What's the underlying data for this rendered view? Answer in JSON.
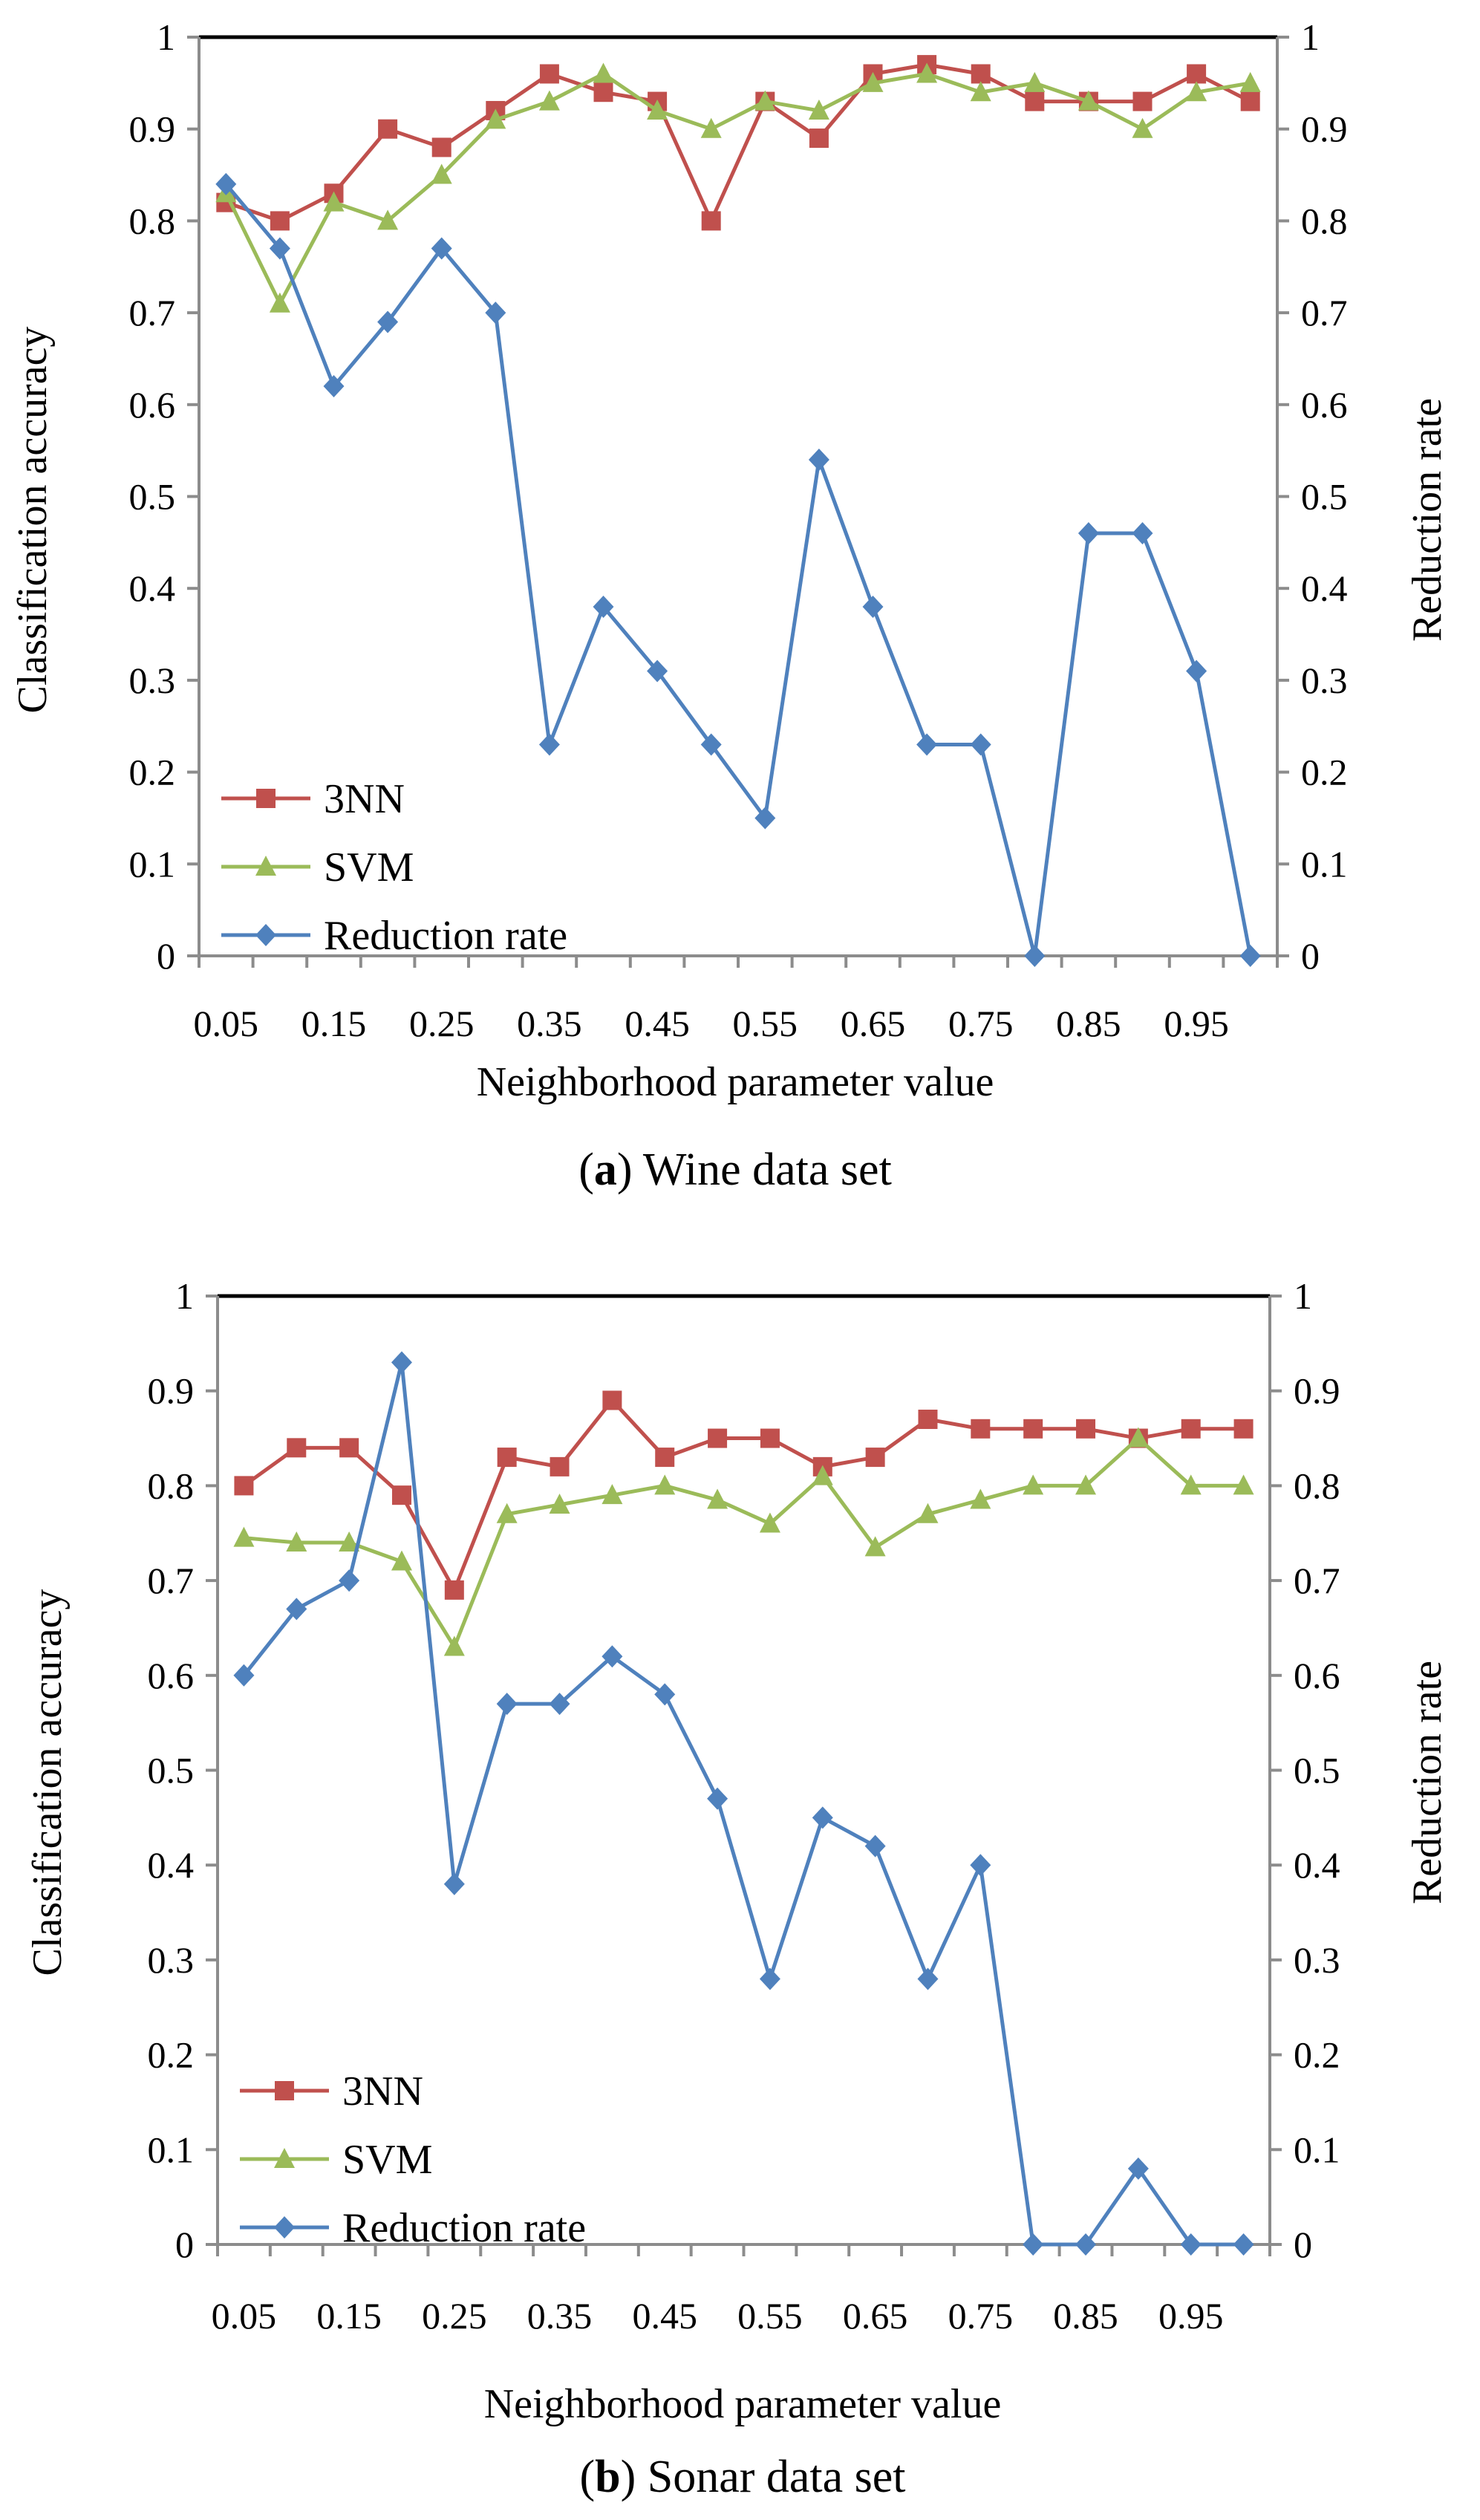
{
  "chart_data": [
    {
      "id": "a",
      "type": "line",
      "caption_label": "a",
      "caption_text": "Wine data set",
      "xlabel": "Neighborhood parameter value",
      "ylabel_left": "Classification accuracy",
      "ylabel_right": "Reduction rate",
      "ylim": [
        0,
        1
      ],
      "y_ticks": [
        "0",
        "0.1",
        "0.2",
        "0.3",
        "0.4",
        "0.5",
        "0.6",
        "0.7",
        "0.8",
        "0.9",
        "1"
      ],
      "x_tick_labels": [
        "0.05",
        "0.15",
        "0.25",
        "0.35",
        "0.45",
        "0.55",
        "0.65",
        "0.75",
        "0.85",
        "0.95"
      ],
      "x": [
        0.05,
        0.1,
        0.15,
        0.2,
        0.25,
        0.3,
        0.35,
        0.4,
        0.45,
        0.5,
        0.55,
        0.6,
        0.65,
        0.7,
        0.75,
        0.8,
        0.85,
        0.9,
        0.95,
        1.0
      ],
      "legend_position": "bottom-left",
      "series": [
        {
          "name": "3NN",
          "color": "#c0504d",
          "marker": "square",
          "values": [
            0.82,
            0.8,
            0.83,
            0.9,
            0.88,
            0.92,
            0.96,
            0.94,
            0.93,
            0.8,
            0.93,
            0.89,
            0.96,
            0.97,
            0.96,
            0.93,
            0.93,
            0.93,
            0.96,
            0.93
          ]
        },
        {
          "name": "SVM",
          "color": "#9bbb59",
          "marker": "triangle",
          "values": [
            0.83,
            0.71,
            0.82,
            0.8,
            0.85,
            0.91,
            0.93,
            0.96,
            0.92,
            0.9,
            0.93,
            0.92,
            0.95,
            0.96,
            0.94,
            0.95,
            0.93,
            0.9,
            0.94,
            0.95
          ]
        },
        {
          "name": "Reduction rate",
          "color": "#4f81bd",
          "marker": "diamond",
          "values": [
            0.84,
            0.77,
            0.62,
            0.69,
            0.77,
            0.7,
            0.23,
            0.38,
            0.31,
            0.23,
            0.15,
            0.54,
            0.38,
            0.23,
            0.23,
            0.0,
            0.46,
            0.46,
            0.31,
            0.0
          ]
        }
      ]
    },
    {
      "id": "b",
      "type": "line",
      "caption_label": "b",
      "caption_text": "Sonar data set",
      "xlabel": "Neighborhood parameter value",
      "ylabel_left": "Classification accuracy",
      "ylabel_right": "Reduction rate",
      "ylim": [
        0,
        1
      ],
      "y_ticks": [
        "0",
        "0.1",
        "0.2",
        "0.3",
        "0.4",
        "0.5",
        "0.6",
        "0.7",
        "0.8",
        "0.9",
        "1"
      ],
      "x_tick_labels": [
        "0.05",
        "0.15",
        "0.25",
        "0.35",
        "0.45",
        "0.55",
        "0.65",
        "0.75",
        "0.85",
        "0.95"
      ],
      "x": [
        0.05,
        0.1,
        0.15,
        0.2,
        0.25,
        0.3,
        0.35,
        0.4,
        0.45,
        0.5,
        0.55,
        0.6,
        0.65,
        0.7,
        0.75,
        0.8,
        0.85,
        0.9,
        0.95,
        1.0
      ],
      "legend_position": "bottom-left",
      "series": [
        {
          "name": "3NN",
          "color": "#c0504d",
          "marker": "square",
          "values": [
            0.8,
            0.84,
            0.84,
            0.79,
            0.69,
            0.83,
            0.82,
            0.89,
            0.83,
            0.85,
            0.85,
            0.82,
            0.83,
            0.87,
            0.86,
            0.86,
            0.86,
            0.85,
            0.86,
            0.86
          ]
        },
        {
          "name": "SVM",
          "color": "#9bbb59",
          "marker": "triangle",
          "values": [
            0.745,
            0.74,
            0.74,
            0.72,
            0.63,
            0.77,
            0.78,
            0.79,
            0.8,
            0.785,
            0.76,
            0.81,
            0.735,
            0.77,
            0.785,
            0.8,
            0.8,
            0.85,
            0.8,
            0.8
          ]
        },
        {
          "name": "Reduction rate",
          "color": "#4f81bd",
          "marker": "diamond",
          "values": [
            0.6,
            0.67,
            0.7,
            0.93,
            0.38,
            0.57,
            0.57,
            0.62,
            0.58,
            0.47,
            0.28,
            0.45,
            0.42,
            0.28,
            0.4,
            0.0,
            0.0,
            0.08,
            0.0,
            0.0
          ]
        }
      ]
    }
  ]
}
